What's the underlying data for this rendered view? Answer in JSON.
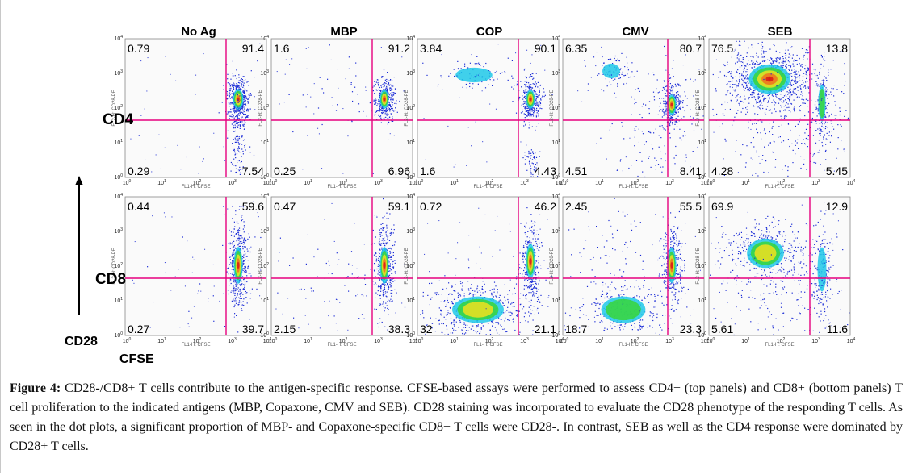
{
  "figure": {
    "columns": [
      "No Ag",
      "MBP",
      "COP",
      "CMV",
      "SEB"
    ],
    "rows": [
      {
        "label": "CD4",
        "quadrants": [
          {
            "ul": "0.79",
            "ur": "91.4",
            "ll": "0.29",
            "lr": "7.54"
          },
          {
            "ul": "1.6",
            "ur": "91.2",
            "ll": "0.25",
            "lr": "6.96"
          },
          {
            "ul": "3.84",
            "ur": "90.1",
            "ll": "1.6",
            "lr": "4.43"
          },
          {
            "ul": "6.35",
            "ur": "80.7",
            "ll": "4.51",
            "lr": "8.41"
          },
          {
            "ul": "76.5",
            "ur": "13.8",
            "ll": "4.28",
            "lr": "5.45"
          }
        ]
      },
      {
        "label": "CD8",
        "quadrants": [
          {
            "ul": "0.44",
            "ur": "59.6",
            "ll": "0.27",
            "lr": "39.7"
          },
          {
            "ul": "0.47",
            "ur": "59.1",
            "ll": "2.15",
            "lr": "38.3"
          },
          {
            "ul": "0.72",
            "ur": "46.2",
            "ll": "32",
            "lr": "21.1"
          },
          {
            "ul": "2.45",
            "ur": "55.5",
            "ll": "18.7",
            "lr": "23.3"
          },
          {
            "ul": "69.9",
            "ur": "12.9",
            "ll": "5.61",
            "lr": "11.6"
          }
        ]
      }
    ],
    "y_axis_label": "CD28",
    "x_axis_label": "CFSE",
    "tick_labels": {
      "base": "10",
      "exponents": [
        "0",
        "1",
        "2",
        "3",
        "4"
      ]
    },
    "faint_axis_text": {
      "x": "FL1-H: CFSE",
      "y": "FL2-H: CD28-PE"
    },
    "colors": {
      "gate_line": "#e6007e",
      "density_scale": [
        "#1a2bd6",
        "#1ec8e8",
        "#38d63a",
        "#f0e020",
        "#f07020",
        "#d81818"
      ]
    }
  },
  "caption": {
    "label": "Figure 4:",
    "text": " CD28-/CD8+ T cells contribute to the antigen-specific response. CFSE-based assays were performed to assess CD4+ (top panels) and CD8+ (bottom panels) T cell proliferation to the indicated antigens (MBP, Copaxone, CMV and SEB). CD28 staining was incorporated to evaluate the CD28 phenotype of the responding T cells. As seen in the dot plots, a significant proportion of MBP- and Copaxone-specific CD8+ T cells were CD28-. In contrast, SEB as well as the CD4 response were dominated by CD28+ T cells."
  }
}
